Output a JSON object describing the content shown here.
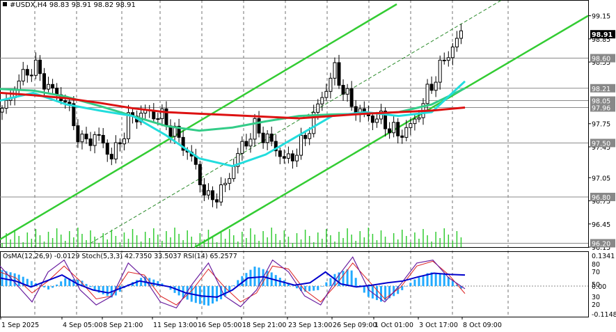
{
  "header": {
    "symbol": "#USDX,H4",
    "ohlc": "98.83 98.91 98.82 98.91"
  },
  "colors": {
    "bg": "#ffffff",
    "grid": "#000000",
    "candle": "#000000",
    "channel": "#33cc33",
    "ma_red": "#dd1111",
    "ma_green": "#33cc88",
    "ma_cyan": "#22dddd",
    "level_bg": "#888888",
    "current_bg": "#000000",
    "volume": "#33cc33",
    "osma": "#22aaff",
    "rsi": "#0000cc",
    "stoch_main": "#6a1fa0",
    "stoch_signal": "#dd2222"
  },
  "chart_data": {
    "type": "candlestick",
    "price_axis": {
      "ylim": [
        96.15,
        99.3
      ],
      "ticks": [
        "99.15",
        "98.85",
        "98.55",
        "97.75",
        "97.45",
        "97.05",
        "96.75",
        "96.45",
        "96.15"
      ]
    },
    "levels": [
      "98.60",
      "98.21",
      "98.05",
      "97.96",
      "97.50",
      "96.80",
      "96.20"
    ],
    "current_price": "98.91",
    "x_tick_labels": [
      "1 Sep 2025",
      "4 Sep 05:00",
      "8 Sep 21:00",
      "11 Sep 13:00",
      "16 Sep 05:00",
      "18 Sep 21:00",
      "23 Sep 13:00",
      "26 Sep 09:00",
      "1 Oct 01:00",
      "3 Oct 17:00",
      "8 Oct 09:00"
    ],
    "close_path": [
      97.9,
      98.3,
      98.5,
      98.2,
      98.05,
      97.5,
      97.6,
      97.3,
      97.8,
      97.9,
      97.85,
      97.6,
      97.3,
      96.75,
      96.9,
      97.4,
      97.7,
      97.5,
      97.25,
      97.5,
      98.0,
      98.45,
      98.0,
      97.85,
      97.8,
      97.6,
      97.75,
      98.2,
      98.6,
      98.91
    ],
    "ma_red": [
      98.15,
      98.12,
      98.08,
      98.02,
      97.95,
      97.9,
      97.88,
      97.86,
      97.84,
      97.82,
      97.85,
      97.88,
      97.9,
      97.92,
      97.96
    ],
    "ma_green": [
      98.2,
      98.18,
      98.1,
      97.98,
      97.85,
      97.72,
      97.66,
      97.7,
      97.78,
      97.85,
      97.87,
      97.88,
      97.9,
      98.0,
      98.21
    ],
    "ma_cyan": [
      98.05,
      98.15,
      98.0,
      97.92,
      97.85,
      97.6,
      97.3,
      97.2,
      97.35,
      97.6,
      97.85,
      97.9,
      97.85,
      97.9,
      98.3
    ],
    "indicator_label": "OsMA(12,26,9) -0.0129  Stoch(5,3,3) 42.7350 33.5037  RSI(14) 65.2577",
    "indicator_axis": [
      "0.1341",
      "80",
      "70",
      "50",
      "0.00",
      "30",
      "20",
      "-0.1148"
    ],
    "rsi_path": [
      60,
      55,
      45,
      55,
      65,
      50,
      40,
      35,
      45,
      55,
      50,
      45,
      35,
      30,
      28,
      40,
      60,
      62,
      55,
      48,
      52,
      70,
      50,
      45,
      48,
      52,
      55,
      62,
      68,
      66,
      65
    ],
    "stoch_main": [
      80,
      50,
      20,
      70,
      90,
      40,
      15,
      30,
      85,
      60,
      20,
      10,
      50,
      85,
      30,
      12,
      40,
      90,
      70,
      30,
      15,
      60,
      95,
      40,
      20,
      50,
      85,
      90,
      60,
      42
    ],
    "stoch_signal": [
      70,
      60,
      35,
      55,
      80,
      55,
      25,
      30,
      70,
      65,
      30,
      15,
      40,
      75,
      45,
      20,
      35,
      80,
      75,
      40,
      20,
      50,
      85,
      55,
      25,
      45,
      80,
      88,
      65,
      34
    ],
    "osma_hist": [
      0.08,
      0.06,
      0.02,
      -0.02,
      0.04,
      0.03,
      -0.03,
      -0.06,
      0.01,
      0.05,
      0.02,
      -0.04,
      -0.08,
      -0.1,
      -0.06,
      0.04,
      0.1,
      0.07,
      0.02,
      -0.03,
      -0.02,
      0.06,
      0.09,
      -0.05,
      -0.08,
      -0.04,
      0.03,
      0.07,
      0.06,
      -0.0129
    ]
  }
}
